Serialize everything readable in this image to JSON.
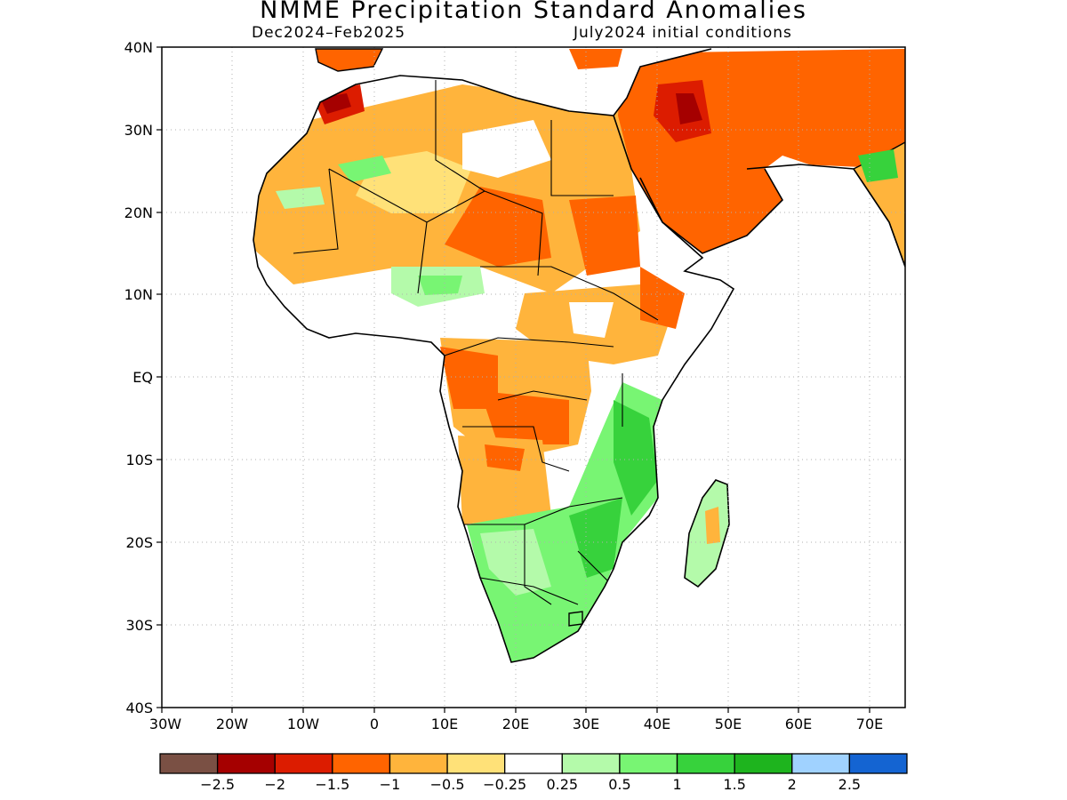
{
  "title": "NMME Precipitation Standard Anomalies",
  "subtitle_left": "Dec2024–Feb2025",
  "subtitle_right": "July2024 initial conditions",
  "y_axis_labels": [
    "40N",
    "30N",
    "20N",
    "10N",
    "EQ",
    "10S",
    "20S",
    "30S",
    "40S"
  ],
  "x_axis_labels": [
    "30W",
    "20W",
    "10W",
    "0",
    "10E",
    "20E",
    "30E",
    "40E",
    "50E",
    "60E",
    "70E"
  ],
  "colorbar": {
    "colors": [
      "#7a5044",
      "#a50000",
      "#dc1c00",
      "#ff6400",
      "#ffb43c",
      "#ffe178",
      "#ffffff",
      "#b4faaa",
      "#78f573",
      "#37d23c",
      "#1eb41e",
      "#a0d2ff",
      "#1464d2"
    ],
    "labels": [
      "−2.5",
      "−2",
      "−1.5",
      "−1",
      "−0.5",
      "−0.25",
      "0.25",
      "0.5",
      "1",
      "1.5",
      "2",
      "2.5"
    ]
  },
  "colors": {
    "frame": "#000000",
    "grid": "#b0b0b0",
    "coast": "#000000"
  }
}
